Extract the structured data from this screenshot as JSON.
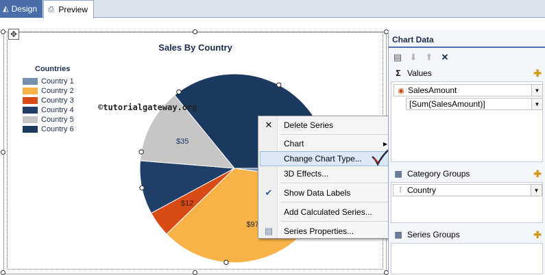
{
  "tabs": [
    {
      "label": "Design",
      "icon": "design-icon"
    },
    {
      "label": "Preview",
      "icon": "preview-icon"
    }
  ],
  "chart": {
    "watermark": "©tutorialgateway.org"
  },
  "chart_data": {
    "type": "pie",
    "title": "Sales By Country",
    "legend_title": "Countries",
    "legend_position": "left",
    "categories": [
      "Country 1",
      "Country 2",
      "Country 3",
      "Country 4",
      "Country 5",
      "Country 6"
    ],
    "values": [
      6,
      97,
      12,
      25,
      35,
      98
    ],
    "data_labels": [
      "",
      "$97",
      "$12",
      "",
      "$35",
      ""
    ],
    "colors": [
      "#7790b0",
      "#f9b248",
      "#d84b16",
      "#1f3e68",
      "#c6c6c6",
      "#1c3a60"
    ]
  },
  "context_menu": {
    "items": [
      {
        "label": "Delete Series",
        "icon": "delete-icon",
        "glyph": "✕"
      },
      {
        "label": "Chart",
        "submenu": true
      },
      {
        "label": "Change Chart Type...",
        "hover": true
      },
      {
        "label": "3D Effects..."
      },
      {
        "label": "Show Data Labels",
        "checked": true,
        "glyph": "✔"
      },
      {
        "label": "Add Calculated Series..."
      },
      {
        "label": "Series Properties...",
        "icon": "properties-icon",
        "glyph": "▤"
      }
    ]
  },
  "pane": {
    "title": "Chart Data",
    "values_label": "Values",
    "values_field": "SalesAmount",
    "values_expression": "[Sum(SalesAmount)]",
    "category_groups_label": "Category Groups",
    "category_field": "Country",
    "series_groups_label": "Series Groups"
  },
  "colors": {
    "accent": "#4a6ea9",
    "pane_background": "#f3f5f8",
    "hover_highlight": "#dbe8f7"
  }
}
